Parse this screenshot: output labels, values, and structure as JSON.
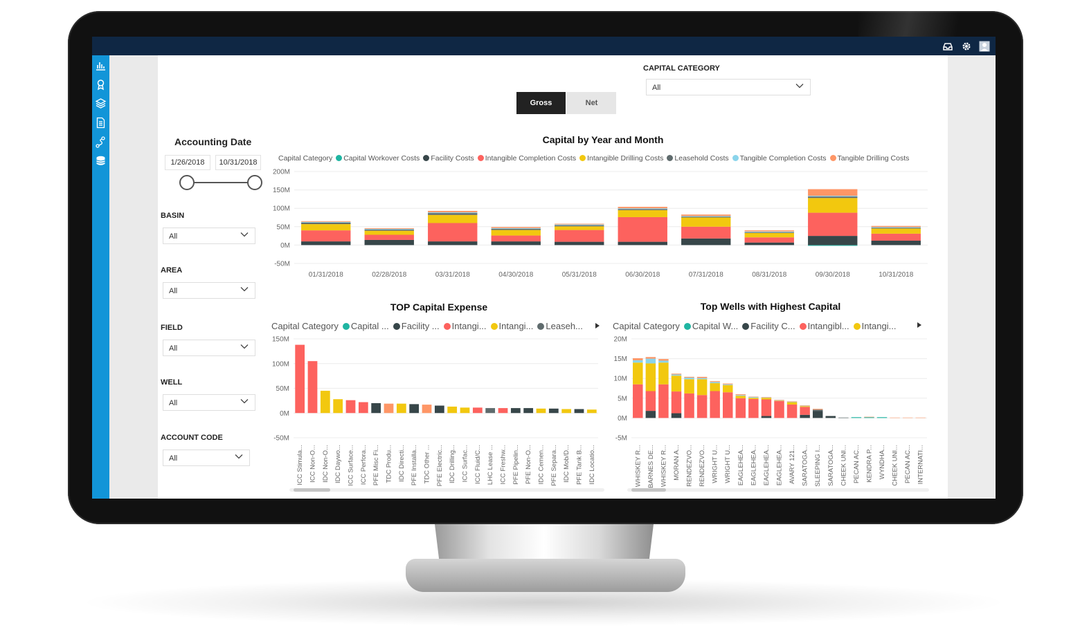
{
  "topbar": {
    "icons": [
      "inbox-icon",
      "gear-icon",
      "user-avatar-icon"
    ]
  },
  "sidebar": {
    "icons": [
      "bar-chart-icon",
      "award-icon",
      "layers-icon",
      "document-icon",
      "route-icon",
      "database-icon"
    ]
  },
  "toggle": {
    "gross_label": "Gross",
    "net_label": "Net",
    "selected": "Gross"
  },
  "capital_category_filter": {
    "label": "CAPITAL CATEGORY",
    "value": "All"
  },
  "accounting_date": {
    "title": "Accounting Date",
    "start": "1/26/2018",
    "end": "10/31/2018"
  },
  "filters": [
    {
      "label": "BASIN",
      "value": "All"
    },
    {
      "label": "AREA",
      "value": "All"
    },
    {
      "label": "FIELD",
      "value": "All"
    },
    {
      "label": "WELL",
      "value": "All"
    },
    {
      "label": "ACCOUNT CODE",
      "value": "All"
    }
  ],
  "colors": {
    "Capital Workover Costs": "#1fb5a2",
    "Facility Costs": "#374649",
    "Intangible Completion Costs": "#fd625e",
    "Intangible Drilling Costs": "#f2c80f",
    "Leasehold Costs": "#5f6b6d",
    "Tangible Completion Costs": "#8ad4eb",
    "Tangible Drilling Costs": "#fe9666"
  },
  "chart_data": [
    {
      "type": "bar",
      "title": "Capital by Year and Month",
      "legend_title": "Capital Category",
      "legend": [
        "Capital Workover Costs",
        "Facility Costs",
        "Intangible Completion Costs",
        "Intangible Drilling Costs",
        "Leasehold Costs",
        "Tangible Completion Costs",
        "Tangible Drilling Costs"
      ],
      "categories": [
        "01/31/2018",
        "02/28/2018",
        "03/31/2018",
        "04/30/2018",
        "05/31/2018",
        "06/30/2018",
        "07/31/2018",
        "08/31/2018",
        "09/30/2018",
        "10/31/2018"
      ],
      "series": [
        {
          "name": "Capital Workover Costs",
          "values": [
            0,
            0,
            0,
            0,
            0,
            0,
            0,
            0,
            -2,
            0
          ]
        },
        {
          "name": "Facility Costs",
          "values": [
            10,
            14,
            10,
            10,
            9,
            9,
            18,
            7,
            25,
            12
          ]
        },
        {
          "name": "Intangible Completion Costs",
          "values": [
            30,
            14,
            50,
            16,
            32,
            67,
            32,
            14,
            63,
            19
          ]
        },
        {
          "name": "Intangible Drilling Costs",
          "values": [
            17,
            11,
            22,
            15,
            10,
            19,
            25,
            12,
            40,
            14
          ]
        },
        {
          "name": "Leasehold Costs",
          "values": [
            4,
            3,
            5,
            3,
            3,
            3,
            2,
            2,
            4,
            2
          ]
        },
        {
          "name": "Tangible Completion Costs",
          "values": [
            2,
            2,
            2,
            2,
            2,
            2,
            2,
            2,
            2,
            2
          ]
        },
        {
          "name": "Tangible Drilling Costs",
          "values": [
            2,
            2,
            4,
            3,
            2,
            4,
            4,
            3,
            18,
            3
          ]
        }
      ],
      "yticks": [
        "200M",
        "150M",
        "100M",
        "50M",
        "0M",
        "-50M"
      ],
      "ylim": [
        -50,
        200
      ]
    },
    {
      "type": "bar",
      "title": "TOP Capital Expense",
      "legend_title": "Capital Category",
      "legend": [
        "Capital ...",
        "Facility ...",
        "Intangi...",
        "Intangi...",
        "Leaseh..."
      ],
      "categories": [
        "ICC Stimula...",
        "ICC Non-O...",
        "IDC Non-O...",
        "IDC Daywo...",
        "ICC Surface...",
        "ICC Perfora...",
        "PFE Misc Fi...",
        "TDC Produ...",
        "IDC Directi...",
        "PFE Installa...",
        "TDC Other ...",
        "PFE Electric...",
        "IDC Drilling...",
        "ICC Surfac...",
        "ICC Fluid/C...",
        "LHC Lease ...",
        "ICC Freshw...",
        "PFE Pipelin...",
        "PFE Non-O...",
        "IDC Cemen...",
        "PFE Separa...",
        "IDC Mob/D...",
        "PFE Tank B...",
        "IDC Locatio..."
      ],
      "values": [
        138,
        105,
        45,
        28,
        26,
        22,
        20,
        19,
        19,
        18,
        17,
        15,
        13,
        11,
        11,
        10,
        10,
        10,
        10,
        9,
        9,
        8,
        8,
        7
      ],
      "bar_categories": [
        "Intangible Completion Costs",
        "Intangible Completion Costs",
        "Intangible Drilling Costs",
        "Intangible Drilling Costs",
        "Intangible Completion Costs",
        "Intangible Completion Costs",
        "Facility Costs",
        "Tangible Drilling Costs",
        "Intangible Drilling Costs",
        "Facility Costs",
        "Tangible Drilling Costs",
        "Facility Costs",
        "Intangible Drilling Costs",
        "Intangible Drilling Costs",
        "Intangible Completion Costs",
        "Leasehold Costs",
        "Intangible Completion Costs",
        "Facility Costs",
        "Facility Costs",
        "Intangible Drilling Costs",
        "Facility Costs",
        "Intangible Drilling Costs",
        "Facility Costs",
        "Intangible Drilling Costs"
      ],
      "yticks": [
        "150M",
        "100M",
        "50M",
        "0M",
        "-50M"
      ],
      "ylim": [
        -50,
        150
      ]
    },
    {
      "type": "bar",
      "title": "Top Wells with Highest Capital",
      "legend_title": "Capital Category",
      "legend": [
        "Capital W...",
        "Facility C...",
        "Intangibl...",
        "Intangi..."
      ],
      "categories": [
        "WHISKEY R...",
        "BARNES DE...",
        "WHISKEY R...",
        "MORAN A...",
        "RENDEZVO...",
        "RENDEZVO...",
        "WRIGHT U...",
        "WRIGHT U...",
        "EAGLEHEA...",
        "EAGLEHEA...",
        "EAGLEHEA...",
        "EAGLEHEA...",
        "AVARY 121...",
        "SARATOGA...",
        "SLEEPING I...",
        "SARATOGA...",
        "CHEEK UNI...",
        "PECAN AC...",
        "KENDRA P...",
        "WYNDHA...",
        "CHEEK UNI...",
        "PECAN AC...",
        "INTERNATI..."
      ],
      "series": [
        {
          "name": "Capital Workover Costs",
          "values": [
            0,
            0,
            0,
            0,
            0,
            0,
            0,
            0,
            0,
            0,
            0,
            0,
            0,
            0,
            0,
            0,
            0,
            0.2,
            0.2,
            0.2,
            0,
            0,
            0
          ]
        },
        {
          "name": "Facility Costs",
          "values": [
            0,
            1.8,
            0,
            1.2,
            0,
            0,
            0,
            0,
            0,
            0,
            0.5,
            0,
            0,
            0.8,
            1.8,
            0.5,
            0.1,
            0,
            0,
            0,
            0,
            0,
            0
          ]
        },
        {
          "name": "Intangible Completion Costs",
          "values": [
            8.5,
            5,
            8.5,
            5.5,
            6.2,
            5.8,
            6.8,
            6.5,
            5,
            4.8,
            4.2,
            4.3,
            3.4,
            2.0,
            0,
            0,
            0,
            0,
            0,
            0,
            0,
            0,
            0
          ]
        },
        {
          "name": "Intangible Drilling Costs",
          "values": [
            5.5,
            7,
            5.5,
            4,
            3.6,
            4.0,
            2.0,
            1.8,
            0.6,
            0.3,
            0.4,
            0.1,
            0.6,
            0.2,
            0,
            0,
            0,
            0,
            0,
            0,
            0,
            0,
            0
          ]
        },
        {
          "name": "Leasehold Costs",
          "values": [
            0,
            0,
            0,
            0,
            0,
            0,
            0,
            0,
            0,
            0,
            0,
            0,
            0,
            0,
            0.3,
            0,
            0,
            0,
            0,
            0,
            0,
            0,
            0
          ]
        },
        {
          "name": "Tangible Completion Costs",
          "values": [
            0.6,
            1.2,
            0.5,
            0.3,
            0.4,
            0.3,
            0.3,
            0.2,
            0.2,
            0.2,
            0.1,
            0.1,
            0.1,
            0.1,
            0,
            0,
            0,
            0,
            0,
            0,
            0,
            0,
            0
          ]
        },
        {
          "name": "Tangible Drilling Costs",
          "values": [
            0.5,
            0.4,
            0.4,
            0.2,
            0.2,
            0.3,
            0.2,
            0.2,
            0.2,
            0.1,
            0.1,
            0.1,
            0.1,
            0.1,
            0.2,
            0,
            0,
            0,
            0.1,
            0,
            0.1,
            0.1,
            0.1
          ]
        }
      ],
      "yticks": [
        "20M",
        "15M",
        "10M",
        "5M",
        "0M",
        "-5M"
      ],
      "ylim": [
        -5,
        20
      ]
    }
  ]
}
